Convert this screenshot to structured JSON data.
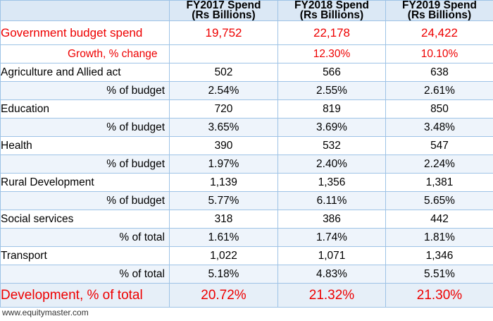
{
  "header": {
    "col1": {
      "line1": "FY2017 Spend",
      "line2": "(Rs  Billions)"
    },
    "col2": {
      "line1": "FY2018 Spend",
      "line2": "(Rs Billions)"
    },
    "col3": {
      "line1": "FY2019 Spend",
      "line2": "(Rs Billions)"
    }
  },
  "rows": [
    {
      "label": "Government budget spend",
      "fy2017": "19,752",
      "fy2018": "22,178",
      "fy2019": "24,422"
    },
    {
      "label": "Growth, % change",
      "fy2017": "",
      "fy2018": "12.30%",
      "fy2019": "10.10%"
    },
    {
      "label": "Agriculture and Allied act",
      "fy2017": "502",
      "fy2018": "566",
      "fy2019": "638"
    },
    {
      "label": "% of budget",
      "fy2017": "2.54%",
      "fy2018": "2.55%",
      "fy2019": "2.61%"
    },
    {
      "label": "Education",
      "fy2017": "720",
      "fy2018": "819",
      "fy2019": "850"
    },
    {
      "label": "% of budget",
      "fy2017": "3.65%",
      "fy2018": "3.69%",
      "fy2019": "3.48%"
    },
    {
      "label": "Health",
      "fy2017": "390",
      "fy2018": "532",
      "fy2019": "547"
    },
    {
      "label": "% of budget",
      "fy2017": "1.97%",
      "fy2018": "2.40%",
      "fy2019": "2.24%"
    },
    {
      "label": "Rural Development",
      "fy2017": "1,139",
      "fy2018": "1,356",
      "fy2019": "1,381"
    },
    {
      "label": "% of budget",
      "fy2017": "5.77%",
      "fy2018": "6.11%",
      "fy2019": "5.65%"
    },
    {
      "label": "Social services",
      "fy2017": "318",
      "fy2018": "386",
      "fy2019": "442"
    },
    {
      "label": "% of total",
      "fy2017": "1.61%",
      "fy2018": "1.74%",
      "fy2019": "1.81%"
    },
    {
      "label": "Transport",
      "fy2017": "1,022",
      "fy2018": "1,071",
      "fy2019": "1,346"
    },
    {
      "label": "% of total",
      "fy2017": "5.18%",
      "fy2018": "4.83%",
      "fy2019": "5.51%"
    },
    {
      "label": "Development, % of total",
      "fy2017": "20.72%",
      "fy2018": "21.32%",
      "fy2019": "21.30%"
    }
  ],
  "footer": {
    "source": "www.equitymaster.com"
  },
  "colors": {
    "accent_red": "#ee0000",
    "border_blue": "#9ec3e6",
    "header_bg": "#dbe8f5"
  }
}
